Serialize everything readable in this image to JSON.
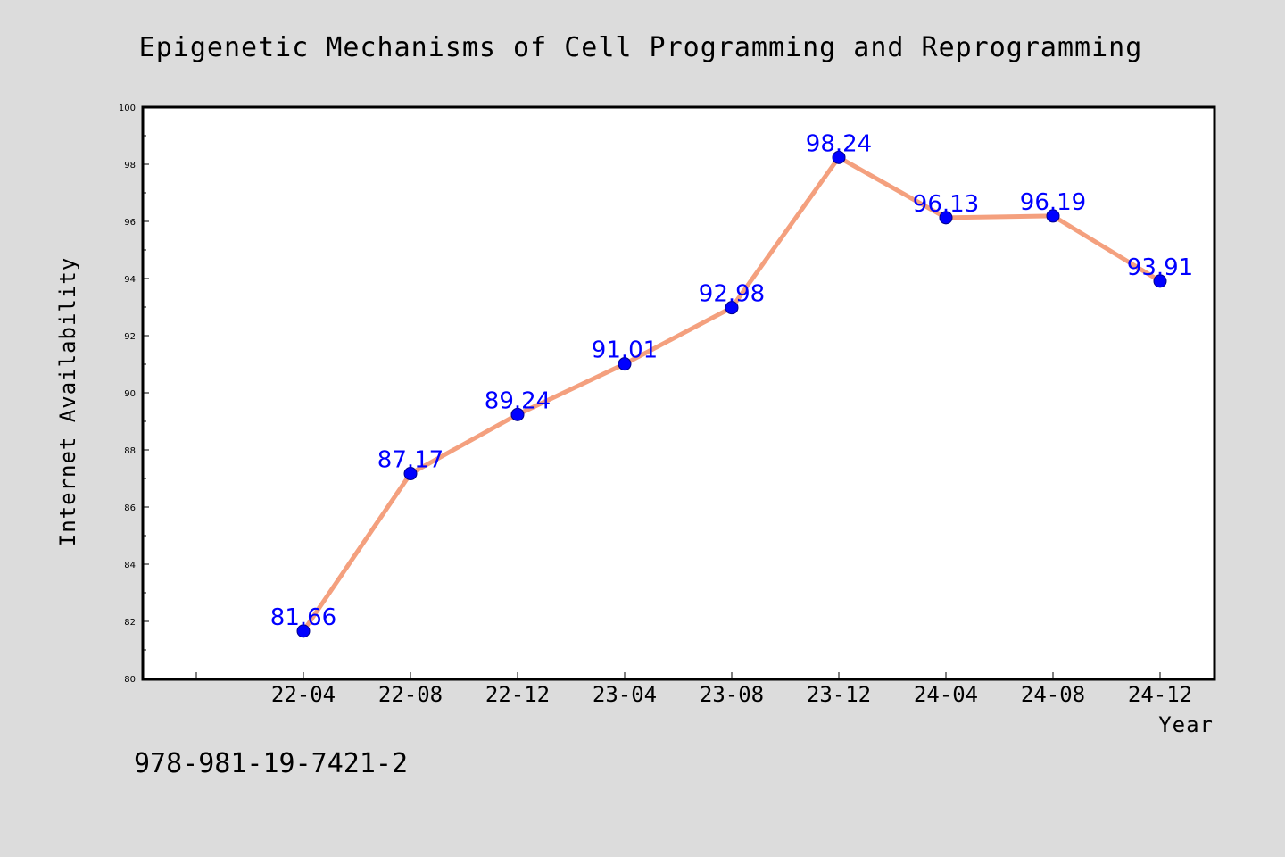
{
  "chart_data": {
    "type": "line",
    "title": "Epigenetic Mechanisms of Cell Programming and Reprogramming",
    "xlabel": "Year",
    "ylabel": "Internet Availability",
    "categories": [
      "22-04",
      "22-08",
      "22-12",
      "23-04",
      "23-08",
      "23-12",
      "24-04",
      "24-08",
      "24-12"
    ],
    "series": [
      {
        "values": [
          81.66,
          87.17,
          89.24,
          91.01,
          92.98,
          98.24,
          96.13,
          96.19,
          93.91
        ],
        "line_color": "#f4a07e",
        "marker_color": "#0000ff"
      }
    ],
    "data_labels": [
      "81.66",
      "87.17",
      "89.24",
      "91.01",
      "92.98",
      "98.24",
      "96.13",
      "96.19",
      "93.91"
    ],
    "ylim": [
      80,
      100
    ],
    "yticks": [
      80,
      82,
      84,
      86,
      88,
      90,
      92,
      94,
      96,
      98,
      100
    ],
    "grid": false,
    "label_color": "#0000ff",
    "background": "#dcdcdc",
    "plot_background": "#ffffff"
  },
  "footer": {
    "isbn": "978-981-19-7421-2"
  }
}
